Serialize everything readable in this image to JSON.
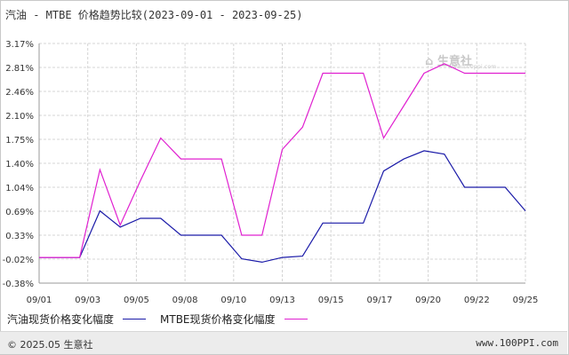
{
  "header": {
    "title": "汽油 - MTBE 价格趋势比较(2023-09-01 - 2023-09-25)"
  },
  "watermark": {
    "text": "生意社",
    "sub": "www.100ppi.com"
  },
  "footer": {
    "copyright": "© 2025.05 生意社",
    "url": "www.100PPI.com"
  },
  "colors": {
    "series1": "#1a1aa8",
    "series2": "#e020d0",
    "grid": "#d4d4d4"
  },
  "chart_data": {
    "type": "line",
    "title": "汽油 - MTBE 价格趋势比较(2023-09-01 - 2023-09-25)",
    "xlabel": "",
    "ylabel": "",
    "x": [
      "09/01",
      "09/02",
      "09/03",
      "09/04",
      "09/05",
      "09/06",
      "09/07",
      "09/08",
      "09/09",
      "09/10",
      "09/11",
      "09/12",
      "09/13",
      "09/14",
      "09/15",
      "09/16",
      "09/17",
      "09/18",
      "09/19",
      "09/20",
      "09/21",
      "09/22",
      "09/23",
      "09/24",
      "09/25"
    ],
    "x_tick_labels": [
      "09/01",
      "09/03",
      "09/05",
      "09/08",
      "09/10",
      "09/13",
      "09/15",
      "09/17",
      "09/20",
      "09/22",
      "09/25"
    ],
    "y_tick_labels": [
      "3.17%",
      "2.81%",
      "2.46%",
      "2.10%",
      "1.75%",
      "1.40%",
      "1.04%",
      "0.69%",
      "0.33%",
      "-0.02%",
      "-0.38%"
    ],
    "ylim": [
      -0.38,
      3.17
    ],
    "grid": true,
    "legend_position": "bottom-left",
    "series": [
      {
        "name": "汽油现货价格变化幅度",
        "values": [
          0.0,
          0.0,
          0.0,
          0.69,
          0.45,
          0.58,
          0.58,
          0.33,
          0.33,
          0.33,
          -0.02,
          -0.07,
          0.0,
          0.02,
          0.51,
          0.51,
          0.51,
          1.28,
          1.46,
          1.58,
          1.53,
          1.04,
          1.04,
          1.04,
          0.69
        ]
      },
      {
        "name": "MTBE现货价格变化幅度",
        "values": [
          0.0,
          0.0,
          0.0,
          1.3,
          0.48,
          1.14,
          1.77,
          1.46,
          1.46,
          1.46,
          0.33,
          0.33,
          1.6,
          1.93,
          2.73,
          2.73,
          2.73,
          1.77,
          2.25,
          2.73,
          2.87,
          2.73,
          2.73,
          2.73,
          2.73
        ]
      }
    ]
  }
}
